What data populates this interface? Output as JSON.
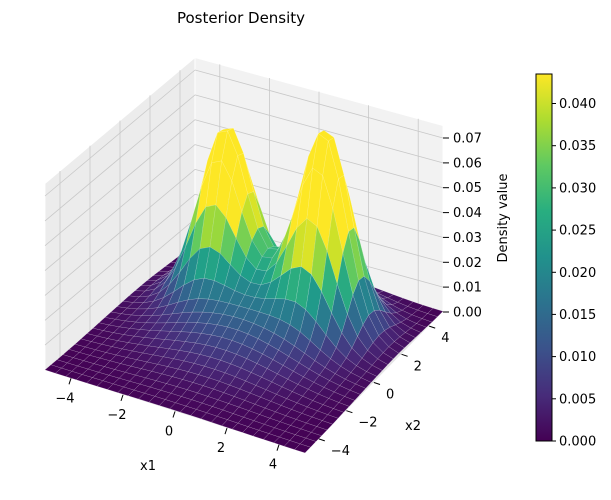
{
  "chart_data": {
    "type": "surface",
    "title": "Posterior Density",
    "xlabel": "x1",
    "ylabel": "x2",
    "zlabel": "Density value",
    "xlim": [
      -5,
      5
    ],
    "ylim": [
      -5,
      5
    ],
    "zlim": [
      0,
      0.075
    ],
    "x_ticks": [
      -4,
      -2,
      0,
      2,
      4
    ],
    "y_ticks": [
      -4,
      -2,
      0,
      2,
      4
    ],
    "z_ticks": [
      0.0,
      0.01,
      0.02,
      0.03,
      0.04,
      0.05,
      0.06,
      0.07
    ],
    "z_tick_labels": [
      "0.00",
      "0.01",
      "0.02",
      "0.03",
      "0.04",
      "0.05",
      "0.06",
      "0.07"
    ],
    "x_tick_labels": [
      "−4",
      "−2",
      "0",
      "2",
      "4"
    ],
    "y_tick_labels": [
      "−4",
      "−2",
      "0",
      "2",
      "4"
    ],
    "grid": true,
    "colormap": "viridis",
    "colorbar": {
      "range": [
        0,
        0.0435
      ],
      "ticks": [
        0.0,
        0.005,
        0.01,
        0.015,
        0.02,
        0.025,
        0.03,
        0.035,
        0.04
      ],
      "tick_labels": [
        "0.000",
        "0.005",
        "0.010",
        "0.015",
        "0.020",
        "0.025",
        "0.030",
        "0.035",
        "0.040"
      ]
    },
    "peaks": [
      {
        "x1": -2.0,
        "x2": 2.0,
        "height": 0.062,
        "spread": 0.9
      },
      {
        "x1": 2.0,
        "x2": 2.0,
        "height": 0.072,
        "spread": 0.9
      },
      {
        "x1": 0.0,
        "x2": 1.0,
        "height": 0.018,
        "spread": 2.2
      }
    ]
  }
}
